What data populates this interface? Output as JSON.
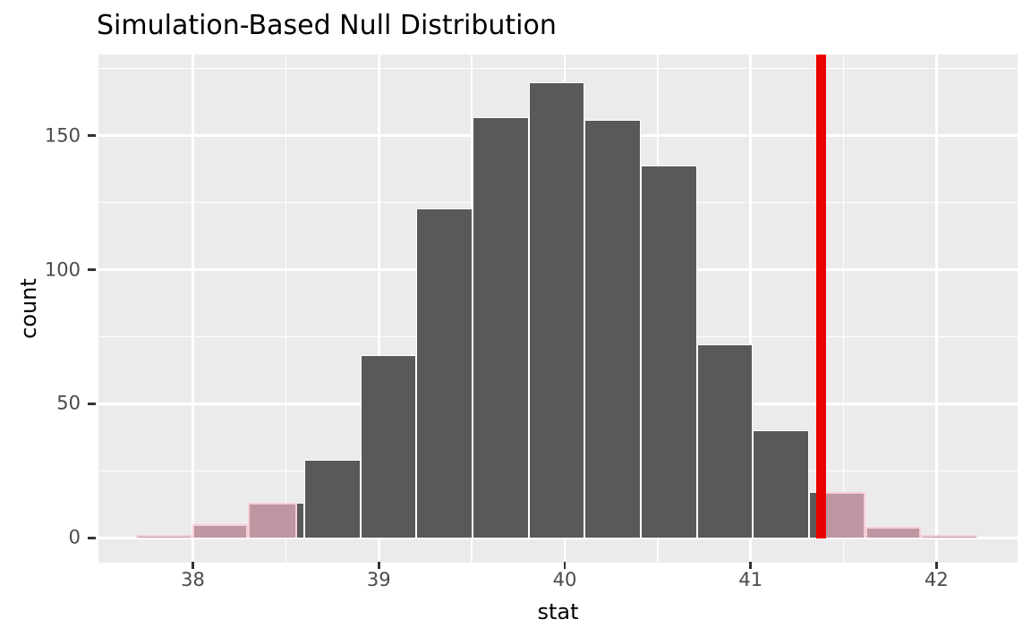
{
  "title": "Simulation-Based Null Distribution",
  "chart_data": {
    "type": "bar",
    "subtype": "histogram-simulation-null",
    "title": "Simulation-Based Null Distribution",
    "xlabel": "stat",
    "ylabel": "count",
    "xlim": [
      37.492,
      42.436
    ],
    "ylim": [
      -9.2,
      180.2
    ],
    "x_major_ticks": [
      38,
      39,
      40,
      41,
      42
    ],
    "x_minor_ticks": [
      38.5,
      39.5,
      40.5,
      41.5
    ],
    "y_major_ticks": [
      0,
      50,
      100,
      150
    ],
    "y_minor_ticks": [
      25,
      75,
      125,
      175
    ],
    "x_tick_labels": [
      "38",
      "39",
      "40",
      "41",
      "42"
    ],
    "y_tick_labels": [
      "0",
      "50",
      "100",
      "150"
    ],
    "bins": [
      {
        "x0": 37.695,
        "x1": 37.997,
        "count": 1
      },
      {
        "x0": 37.997,
        "x1": 38.298,
        "count": 5
      },
      {
        "x0": 38.298,
        "x1": 38.6,
        "count": 13
      },
      {
        "x0": 38.6,
        "x1": 38.902,
        "count": 29
      },
      {
        "x0": 38.902,
        "x1": 39.203,
        "count": 68
      },
      {
        "x0": 39.203,
        "x1": 39.505,
        "count": 123
      },
      {
        "x0": 39.505,
        "x1": 39.807,
        "count": 157
      },
      {
        "x0": 39.807,
        "x1": 40.108,
        "count": 170
      },
      {
        "x0": 40.108,
        "x1": 40.41,
        "count": 156
      },
      {
        "x0": 40.41,
        "x1": 40.712,
        "count": 139
      },
      {
        "x0": 40.712,
        "x1": 41.013,
        "count": 72
      },
      {
        "x0": 41.013,
        "x1": 41.315,
        "count": 40
      },
      {
        "x0": 41.315,
        "x1": 41.617,
        "count": 17
      },
      {
        "x0": 41.617,
        "x1": 41.918,
        "count": 4
      },
      {
        "x0": 41.918,
        "x1": 42.22,
        "count": 1
      }
    ],
    "observed_stat": 41.381,
    "shade_left_max": 38.561,
    "shade_right_min": 41.381,
    "legend": "none",
    "grid": "on",
    "colors": {
      "panel_background": "#EBEBEB",
      "gridline": "#FFFFFF",
      "bar_fill": "#595959",
      "bar_outline": "#FFFFFF",
      "shade_fill": "#BD97A2",
      "shade_outline": "#F8CED7",
      "observed_line": "#EB0000",
      "tick_mark": "#333333",
      "tick_label": "#4A4A4A",
      "text": "#000000"
    }
  }
}
